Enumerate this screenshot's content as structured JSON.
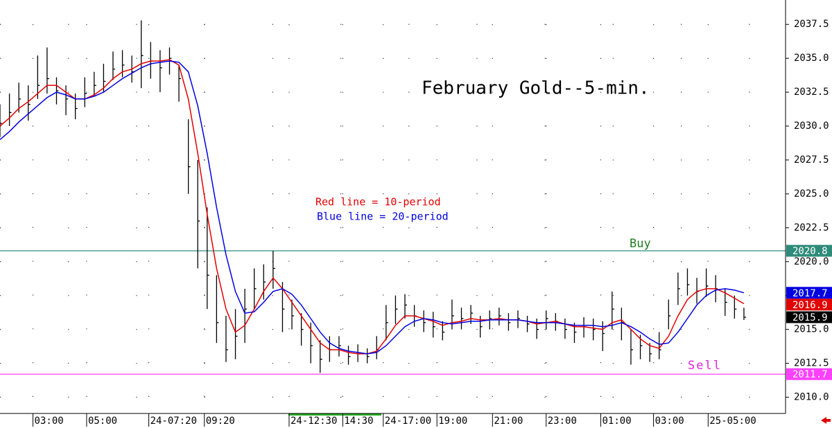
{
  "chart_data": {
    "type": "ohlc",
    "title": "February Gold--5-min.",
    "ylim": [
      2008.8,
      2039.3
    ],
    "xlim": [
      0,
      83.2
    ],
    "yticks": [
      {
        "value": 2010,
        "label": "2010.0"
      },
      {
        "value": 2012.5,
        "label": "2012.5"
      },
      {
        "value": 2015,
        "label": "2015.0"
      },
      {
        "value": 2017.5,
        "label": "2017.5"
      },
      {
        "value": 2020,
        "label": "2020.0"
      },
      {
        "value": 2022.5,
        "label": "2022.5"
      },
      {
        "value": 2025,
        "label": "2025.0"
      },
      {
        "value": 2027.5,
        "label": "2027.5"
      },
      {
        "value": 2030,
        "label": "2030.0"
      },
      {
        "value": 2032.5,
        "label": "2032.5"
      },
      {
        "value": 2035,
        "label": "2035.0"
      },
      {
        "value": 2037.5,
        "label": "2037.5"
      }
    ],
    "xticks": [
      {
        "value": 3.5,
        "label": "03:00"
      },
      {
        "value": 9.2,
        "label": "05:00"
      },
      {
        "value": 15.8,
        "label": "24-07:20"
      },
      {
        "value": 21.7,
        "label": "09:20"
      },
      {
        "value": 30.7,
        "label": "24-12:30"
      },
      {
        "value": 36.4,
        "label": "14:30"
      },
      {
        "value": 40.7,
        "label": "24-17:00"
      },
      {
        "value": 46.4,
        "label": "19:00"
      },
      {
        "value": 52.3,
        "label": "21:00"
      },
      {
        "value": 58.0,
        "label": "23:00"
      },
      {
        "value": 63.8,
        "label": "01:00"
      },
      {
        "value": 69.4,
        "label": "03:00"
      },
      {
        "value": 75.2,
        "label": "25-05:00"
      }
    ],
    "grid": true,
    "ohlc": {
      "color": "#000000",
      "high": [
        2031.6,
        2032.4,
        2033.2,
        2033.0,
        2035.2,
        2035.8,
        2033.6,
        2033.0,
        2032.4,
        2033.6,
        2034.0,
        2034.6,
        2035.5,
        2035.6,
        2035.2,
        2037.8,
        2036.2,
        2035.6,
        2035.8,
        2034.5,
        2030.5,
        2027.5,
        2024.0,
        2019.0,
        2016.0,
        2016.5,
        2018.0,
        2019.5,
        2019.8,
        2020.8,
        2018.5,
        2017.2,
        2016.2,
        2015.5,
        2014.2,
        2014.5,
        2014.5,
        2013.8,
        2013.9,
        2013.6,
        2014.5,
        2016.8,
        2017.5,
        2017.6,
        2016.8,
        2016.4,
        2016.3,
        2015.6,
        2017.2,
        2016.6,
        2016.8,
        2016.0,
        2016.4,
        2016.6,
        2016.2,
        2016.4,
        2016.0,
        2015.8,
        2016.4,
        2016.2,
        2015.8,
        2015.5,
        2015.9,
        2015.8,
        2015.6,
        2017.8,
        2016.6,
        2015.0,
        2014.6,
        2014.0,
        2014.8,
        2017.2,
        2019.2,
        2019.5,
        2018.8,
        2019.5,
        2019.0,
        2018.0,
        2017.5,
        2016.6
      ],
      "low": [
        2029.2,
        2030.0,
        2031.0,
        2030.4,
        2032.0,
        2032.4,
        2031.6,
        2030.8,
        2030.5,
        2031.4,
        2032.2,
        2032.5,
        2033.4,
        2033.6,
        2033.2,
        2032.8,
        2033.5,
        2032.5,
        2033.8,
        2031.8,
        2025.0,
        2019.5,
        2016.5,
        2014.0,
        2012.6,
        2012.8,
        2014.0,
        2016.5,
        2017.2,
        2018.0,
        2014.8,
        2015.0,
        2013.8,
        2012.5,
        2011.8,
        2012.6,
        2013.0,
        2012.4,
        2012.6,
        2012.5,
        2012.8,
        2014.2,
        2015.4,
        2015.8,
        2015.2,
        2014.8,
        2014.4,
        2014.2,
        2015.0,
        2015.0,
        2015.4,
        2014.4,
        2015.0,
        2015.3,
        2014.9,
        2015.1,
        2014.8,
        2014.3,
        2015.0,
        2014.9,
        2014.3,
        2014.0,
        2014.4,
        2014.2,
        2013.4,
        2015.0,
        2014.2,
        2012.4,
        2012.8,
        2012.6,
        2012.8,
        2015.0,
        2016.8,
        2017.5,
        2016.9,
        2017.4,
        2017.0,
        2016.0,
        2015.8,
        2015.7
      ],
      "close": [
        2030.2,
        2031.0,
        2032.0,
        2031.6,
        2033.0,
        2033.5,
        2032.6,
        2032.0,
        2031.3,
        2032.4,
        2033.0,
        2033.3,
        2034.2,
        2034.5,
        2034.0,
        2035.2,
        2034.8,
        2034.3,
        2035.0,
        2033.5,
        2027.0,
        2023.0,
        2019.0,
        2015.5,
        2013.5,
        2014.5,
        2016.5,
        2018.0,
        2018.5,
        2019.5,
        2016.5,
        2016.0,
        2015.0,
        2013.8,
        2012.8,
        2013.5,
        2013.8,
        2013.0,
        2013.2,
        2013.0,
        2013.5,
        2015.5,
        2016.5,
        2016.8,
        2016.0,
        2015.5,
        2015.2,
        2014.8,
        2016.0,
        2015.8,
        2016.2,
        2015.2,
        2015.8,
        2016.0,
        2015.5,
        2015.8,
        2015.4,
        2015.0,
        2015.8,
        2015.6,
        2015.0,
        2014.8,
        2015.2,
        2015.0,
        2014.7,
        2016.5,
        2015.5,
        2013.5,
        2013.8,
        2013.2,
        2013.5,
        2016.0,
        2018.0,
        2018.3,
        2017.8,
        2018.2,
        2018.0,
        2017.0,
        2016.5,
        2015.9
      ]
    },
    "series": [
      {
        "name": "Red line = 10-period",
        "color": "#e00000",
        "values": [
          2030.0,
          2030.6,
          2031.3,
          2031.8,
          2032.4,
          2033.0,
          2033.0,
          2032.5,
          2032.0,
          2032.0,
          2032.3,
          2032.8,
          2033.5,
          2034.0,
          2034.2,
          2034.6,
          2034.8,
          2034.8,
          2034.9,
          2034.5,
          2032.0,
          2028.0,
          2023.5,
          2019.5,
          2016.5,
          2014.8,
          2015.3,
          2016.5,
          2017.8,
          2018.8,
          2018.0,
          2017.0,
          2016.0,
          2015.0,
          2014.0,
          2013.5,
          2013.5,
          2013.3,
          2013.2,
          2013.2,
          2013.4,
          2014.3,
          2015.3,
          2016.0,
          2016.0,
          2015.8,
          2015.6,
          2015.3,
          2015.5,
          2015.6,
          2015.8,
          2015.7,
          2015.7,
          2015.8,
          2015.7,
          2015.7,
          2015.6,
          2015.4,
          2015.5,
          2015.6,
          2015.4,
          2015.2,
          2015.2,
          2015.1,
          2015.0,
          2015.5,
          2015.7,
          2015.0,
          2014.3,
          2013.8,
          2013.6,
          2014.5,
          2016.0,
          2017.2,
          2017.8,
          2018.0,
          2018.0,
          2017.7,
          2017.3,
          2016.9
        ]
      },
      {
        "name": "Blue line = 20-period",
        "color": "#0000e0",
        "values": [
          2029.0,
          2029.6,
          2030.3,
          2030.9,
          2031.5,
          2032.1,
          2032.5,
          2032.3,
          2032.0,
          2032.0,
          2032.2,
          2032.5,
          2033.0,
          2033.5,
          2033.9,
          2034.3,
          2034.6,
          2034.7,
          2034.8,
          2034.7,
          2034.0,
          2031.5,
          2028.0,
          2024.0,
          2020.5,
          2017.8,
          2016.2,
          2016.3,
          2017.0,
          2017.8,
          2018.0,
          2017.6,
          2016.8,
          2015.8,
          2014.8,
          2014.0,
          2013.6,
          2013.4,
          2013.3,
          2013.2,
          2013.3,
          2013.8,
          2014.5,
          2015.2,
          2015.6,
          2015.8,
          2015.7,
          2015.5,
          2015.4,
          2015.5,
          2015.6,
          2015.6,
          2015.7,
          2015.7,
          2015.7,
          2015.7,
          2015.6,
          2015.5,
          2015.5,
          2015.5,
          2015.4,
          2015.3,
          2015.3,
          2015.3,
          2015.2,
          2015.3,
          2015.5,
          2015.2,
          2014.8,
          2014.3,
          2013.9,
          2014.0,
          2014.8,
          2015.8,
          2016.8,
          2017.5,
          2017.9,
          2018.0,
          2017.9,
          2017.7
        ]
      }
    ],
    "levels": [
      {
        "label": "Buy",
        "value": 2020.8,
        "color": "#2e8b7a",
        "label_color": "#1f7a1f"
      },
      {
        "label": "Sell",
        "value": 2011.7,
        "color": "#ff40ff",
        "label_color": "#e020e0"
      }
    ]
  }
}
